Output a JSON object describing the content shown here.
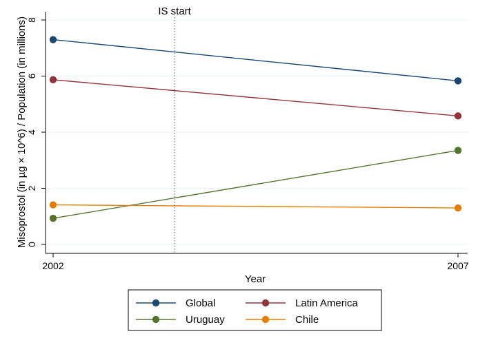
{
  "chart_data": {
    "type": "line",
    "xlabel": "Year",
    "ylabel": "Misoprostol (in µg × 10^6) / Population (in millions)",
    "x": [
      2002,
      2007
    ],
    "xlim": [
      2002,
      2007
    ],
    "ylim": [
      0,
      8
    ],
    "x_ticks": [
      "2002",
      "2007"
    ],
    "y_ticks": [
      0,
      2,
      4,
      6,
      8
    ],
    "grid": true,
    "legend_position": "bottom",
    "annotations": [
      {
        "label": "IS start",
        "x": 2003.5,
        "style": "dotted vertical line"
      }
    ],
    "series": [
      {
        "name": "Global",
        "color": "#1a476f",
        "values": [
          7.3,
          5.83
        ]
      },
      {
        "name": "Latin America",
        "color": "#90353b",
        "values": [
          5.87,
          4.58
        ]
      },
      {
        "name": "Uruguay",
        "color": "#55752f",
        "values": [
          0.93,
          3.35
        ]
      },
      {
        "name": "Chile",
        "color": "#e37e00",
        "values": [
          1.41,
          1.3
        ]
      }
    ]
  }
}
